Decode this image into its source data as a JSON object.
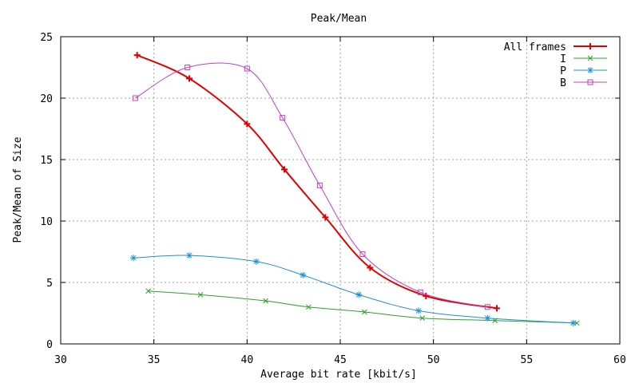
{
  "chart_data": {
    "type": "line",
    "title": "Peak/Mean",
    "xlabel": "Average bit rate [kbit/s]",
    "ylabel": "Peak/Mean of Size",
    "xlim": [
      30,
      60
    ],
    "ylim": [
      0,
      25
    ],
    "xticks": [
      30,
      35,
      40,
      45,
      50,
      55,
      60
    ],
    "yticks": [
      0,
      5,
      10,
      15,
      20,
      25
    ],
    "grid": true,
    "legend_position": "top-right",
    "series": [
      {
        "name": "All frames",
        "color": "#e00000",
        "marker": "plus",
        "x": [
          34.1,
          36.9,
          40.0,
          42.0,
          44.2,
          46.6,
          49.6,
          53.4
        ],
        "y": [
          23.5,
          21.6,
          17.9,
          14.2,
          10.3,
          6.2,
          3.9,
          2.9
        ]
      },
      {
        "name": "I",
        "color": "#2ca02c",
        "marker": "cross",
        "x": [
          34.7,
          37.5,
          41.0,
          43.3,
          46.3,
          49.4,
          53.3,
          57.7
        ],
        "y": [
          4.3,
          4.0,
          3.5,
          3.0,
          2.6,
          2.1,
          1.9,
          1.7
        ]
      },
      {
        "name": "P",
        "color": "#1e90d8",
        "marker": "star",
        "x": [
          33.9,
          36.9,
          40.5,
          43.0,
          46.0,
          49.2,
          52.9,
          57.5
        ],
        "y": [
          7.0,
          7.2,
          6.7,
          5.6,
          4.0,
          2.7,
          2.1,
          1.7
        ]
      },
      {
        "name": "B",
        "color": "#c040c0",
        "marker": "square",
        "x": [
          34.0,
          36.8,
          40.0,
          41.9,
          43.9,
          46.2,
          49.3,
          52.9
        ],
        "y": [
          20.0,
          22.5,
          22.4,
          18.4,
          12.9,
          7.3,
          4.2,
          3.0
        ]
      }
    ]
  }
}
